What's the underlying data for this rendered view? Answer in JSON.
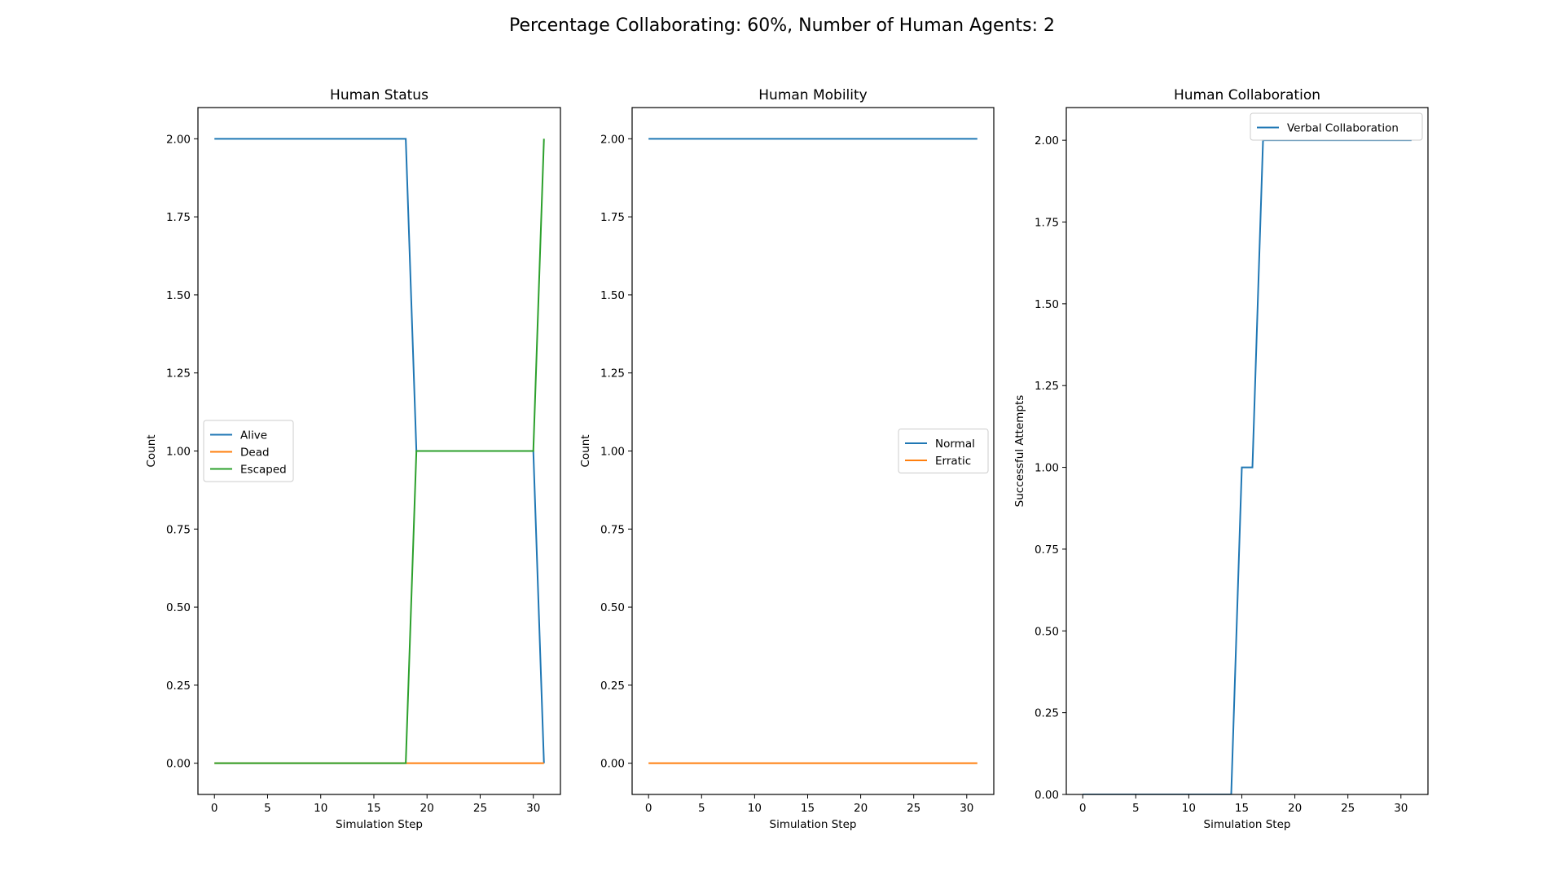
{
  "figure": {
    "suptitle": "Percentage Collaborating: 60%, Number of Human Agents: 2"
  },
  "chart_data": [
    {
      "type": "line",
      "title": "Human Status",
      "xlabel": "Simulation Step",
      "ylabel": "Count",
      "xlim": [
        -1.55,
        32.55
      ],
      "ylim": [
        -0.1,
        2.1
      ],
      "xticks": [
        0,
        5,
        10,
        15,
        20,
        25,
        30
      ],
      "yticks": [
        0.0,
        0.25,
        0.5,
        0.75,
        1.0,
        1.25,
        1.5,
        1.75,
        2.0
      ],
      "ytick_labels": [
        "0.00",
        "0.25",
        "0.50",
        "0.75",
        "1.00",
        "1.25",
        "1.50",
        "1.75",
        "2.00"
      ],
      "legend_position": "center-left",
      "series": [
        {
          "name": "Alive",
          "color": "#1f77b4",
          "x": [
            0,
            18,
            19,
            30,
            31
          ],
          "y": [
            2,
            2,
            1,
            1,
            0
          ]
        },
        {
          "name": "Dead",
          "color": "#ff7f0e",
          "x": [
            0,
            31
          ],
          "y": [
            0,
            0
          ]
        },
        {
          "name": "Escaped",
          "color": "#2ca02c",
          "x": [
            0,
            18,
            19,
            30,
            31
          ],
          "y": [
            0,
            0,
            1,
            1,
            2
          ]
        }
      ]
    },
    {
      "type": "line",
      "title": "Human Mobility",
      "xlabel": "Simulation Step",
      "ylabel": "Count",
      "xlim": [
        -1.55,
        32.55
      ],
      "ylim": [
        -0.1,
        2.1
      ],
      "xticks": [
        0,
        5,
        10,
        15,
        20,
        25,
        30
      ],
      "yticks": [
        0.0,
        0.25,
        0.5,
        0.75,
        1.0,
        1.25,
        1.5,
        1.75,
        2.0
      ],
      "ytick_labels": [
        "0.00",
        "0.25",
        "0.50",
        "0.75",
        "1.00",
        "1.25",
        "1.50",
        "1.75",
        "2.00"
      ],
      "legend_position": "center-right",
      "series": [
        {
          "name": "Normal",
          "color": "#1f77b4",
          "x": [
            0,
            31
          ],
          "y": [
            2,
            2
          ]
        },
        {
          "name": "Erratic",
          "color": "#ff7f0e",
          "x": [
            0,
            31
          ],
          "y": [
            0,
            0
          ]
        }
      ]
    },
    {
      "type": "line",
      "title": "Human Collaboration",
      "xlabel": "Simulation Step",
      "ylabel": "Successful Attempts",
      "xlim": [
        -1.55,
        32.55
      ],
      "ylim": [
        0,
        2.1
      ],
      "xticks": [
        0,
        5,
        10,
        15,
        20,
        25,
        30
      ],
      "yticks": [
        0.0,
        0.25,
        0.5,
        0.75,
        1.0,
        1.25,
        1.5,
        1.75,
        2.0
      ],
      "ytick_labels": [
        "0.00",
        "0.25",
        "0.50",
        "0.75",
        "1.00",
        "1.25",
        "1.50",
        "1.75",
        "2.00"
      ],
      "legend_position": "top-right",
      "series": [
        {
          "name": "Verbal Collaboration",
          "color": "#1f77b4",
          "x": [
            0,
            14,
            15,
            16,
            17,
            31
          ],
          "y": [
            0,
            0,
            1,
            1,
            2,
            2
          ]
        }
      ]
    }
  ]
}
